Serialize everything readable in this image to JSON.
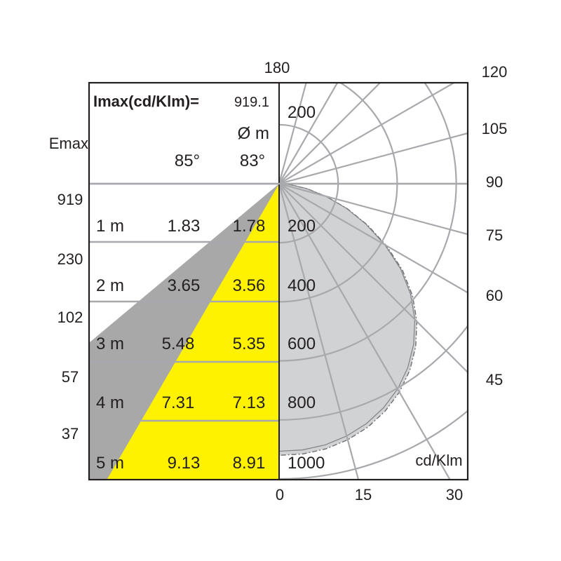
{
  "chart_data": {
    "type": "polar",
    "imax_label": "Imax(cd/Klm)=",
    "imax_value": "919.1",
    "emax_label": "Emax",
    "diameter_label": "Ø m",
    "beam_angles": [
      "85°",
      "83°"
    ],
    "unit_label": "cd/Klm",
    "rows": [
      {
        "distance": "1 m",
        "emax": "919",
        "d1": "1.83",
        "d2": "1.78",
        "d1_value": 1.83,
        "d2_value": 1.78
      },
      {
        "distance": "2 m",
        "emax": "230",
        "d1": "3.65",
        "d2": "3.56",
        "d1_value": 3.65,
        "d2_value": 3.56
      },
      {
        "distance": "3 m",
        "emax": "102",
        "d1": "5.48",
        "d2": "5.35",
        "d1_value": 5.48,
        "d2_value": 5.35
      },
      {
        "distance": "4 m",
        "emax": "57",
        "d1": "7.31",
        "d2": "7.13",
        "d1_value": 7.31,
        "d2_value": 7.13
      },
      {
        "distance": "5 m",
        "emax": "37",
        "d1": "9.13",
        "d2": "8.91",
        "d1_value": 9.13,
        "d2_value": 8.91
      }
    ],
    "radial_ticks": [
      "200",
      "200",
      "400",
      "600",
      "800",
      "1000"
    ],
    "radial_tick_values": [
      200,
      200,
      400,
      600,
      800,
      1000
    ],
    "angle_labels": [
      {
        "label": "180",
        "deg": 180
      },
      {
        "label": "120",
        "deg": 120
      },
      {
        "label": "105",
        "deg": 105
      },
      {
        "label": "90",
        "deg": 90
      },
      {
        "label": "75",
        "deg": 75
      },
      {
        "label": "60",
        "deg": 60
      },
      {
        "label": "45",
        "deg": 45
      }
    ],
    "bottom_angle_labels": [
      "0",
      "15",
      "30"
    ],
    "rmax": 1000,
    "curve": [
      [
        0,
        920
      ],
      [
        5,
        919
      ],
      [
        10,
        912
      ],
      [
        15,
        898
      ],
      [
        20,
        878
      ],
      [
        25,
        850
      ],
      [
        30,
        815
      ],
      [
        35,
        772
      ],
      [
        40,
        720
      ],
      [
        45,
        660
      ],
      [
        50,
        590
      ],
      [
        55,
        510
      ],
      [
        60,
        420
      ],
      [
        65,
        330
      ],
      [
        70,
        245
      ],
      [
        75,
        165
      ],
      [
        80,
        95
      ],
      [
        85,
        40
      ],
      [
        88,
        12
      ],
      [
        90,
        0
      ]
    ],
    "colors": {
      "yellow": "#fff200",
      "gray": "#a9a8a9",
      "distribution": "#d1d2d4",
      "grid": "#a7a9ac",
      "frame": "#231f20"
    }
  }
}
